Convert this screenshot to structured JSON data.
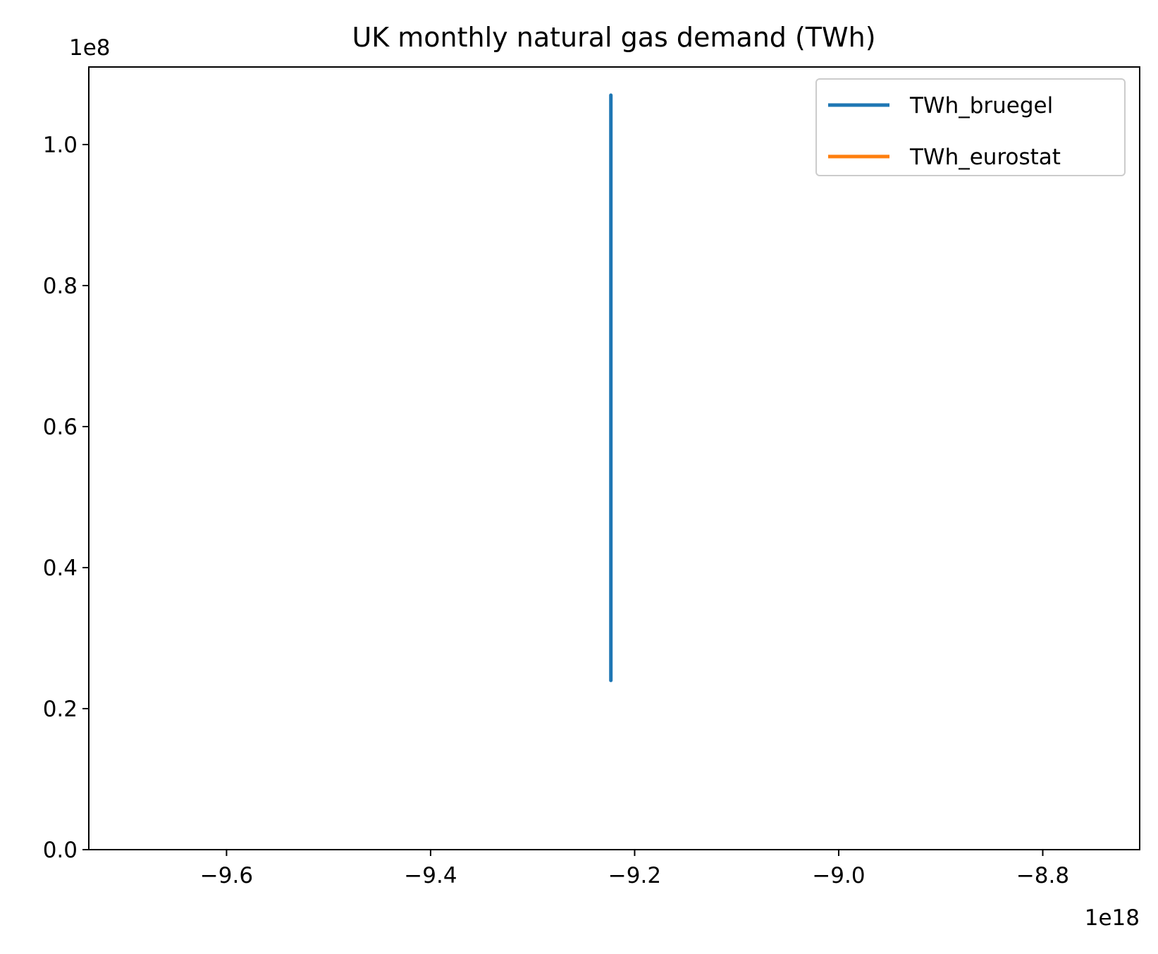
{
  "chart_data": {
    "type": "line",
    "title": "UK monthly natural gas demand (TWh)",
    "xlabel": "",
    "ylabel": "",
    "x_offset_label": "1e18",
    "y_offset_label": "1e8",
    "xlim": [
      -9.735,
      -8.705
    ],
    "ylim": [
      0.0,
      1.11
    ],
    "x_ticks": [
      -9.6,
      -9.4,
      -9.2,
      -9.0,
      -8.8
    ],
    "x_tick_labels": [
      "−9.6",
      "−9.4",
      "−9.2",
      "−9.0",
      "−8.8"
    ],
    "y_ticks": [
      0.0,
      0.2,
      0.4,
      0.6,
      0.8,
      1.0
    ],
    "y_tick_labels": [
      "0.0",
      "0.2",
      "0.4",
      "0.6",
      "0.8",
      "1.0"
    ],
    "grid": false,
    "legend_position": "top-right",
    "series": [
      {
        "name": "TWh_bruegel",
        "color": "#1f77b4",
        "x": [
          -9.2233,
          -9.2233
        ],
        "y": [
          0.24,
          1.07
        ]
      },
      {
        "name": "TWh_eurostat",
        "color": "#ff7f0e",
        "x": [],
        "y": []
      }
    ]
  }
}
